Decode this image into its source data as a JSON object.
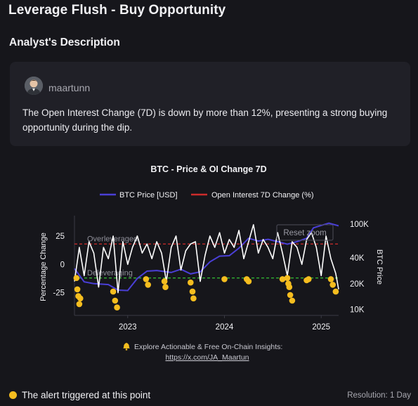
{
  "page": {
    "title": "Leverage Flush - Buy Opportunity",
    "section_heading": "Analyst's Description"
  },
  "description": {
    "author": "maartunn",
    "text": "The Open Interest Change (7D) is down by more than 12%, presenting a strong buying opportunity during the dip."
  },
  "footer": {
    "alert_text": "The alert triggered at this point",
    "resolution": "Resolution: 1 Day"
  },
  "colors": {
    "background": "#16161b",
    "card": "#202027",
    "btc_price": "#4a3fd6",
    "open_interest": "#cc2b2b",
    "oi_line": "#ffffff",
    "alert": "#f5bd1f",
    "overleveraged": "#cc2b2b",
    "deleveraging": "#35c235"
  },
  "chart_data": {
    "type": "line",
    "title": "BTC - Price & OI Change 7D",
    "reset_zoom_label": "Reset zoom",
    "watermark_text": "Explore Actionable & Free On-Chain Insights:",
    "watermark_link": "https://x.com/JA_Maartun",
    "watermark_icon": "bell-icon",
    "legend_position": "top",
    "legend": [
      {
        "name": "BTC Price [USD]",
        "color": "#4a3fd6"
      },
      {
        "name": "Open Interest 7D Change (%)",
        "color": "#cc2b2b"
      }
    ],
    "x_ticks": [
      {
        "label": "2023",
        "t": 2023.0
      },
      {
        "label": "2024",
        "t": 2024.0
      },
      {
        "label": "2025",
        "t": 2025.0
      }
    ],
    "x_range": [
      2022.45,
      2025.18
    ],
    "left_axis": {
      "label": "Percentage Change",
      "ticks": [
        25,
        0,
        -25
      ],
      "range": [
        -45,
        43
      ]
    },
    "right_axis": {
      "label": "BTC Price",
      "scale": "log",
      "ticks": [
        {
          "label": "100K",
          "v": 100000
        },
        {
          "label": "40K",
          "v": 40000
        },
        {
          "label": "20K",
          "v": 20000
        },
        {
          "label": "10K",
          "v": 10000
        }
      ],
      "range": [
        8500,
        125000
      ]
    },
    "thresholds": [
      {
        "label": "Overleveraged",
        "value": 18,
        "color": "#cc2b2b"
      },
      {
        "label": "Deleveraging",
        "value": -12,
        "color": "#35c235"
      }
    ],
    "series": [
      {
        "name": "BTC Price [USD]",
        "axis": "right",
        "t": [
          2022.45,
          2022.55,
          2022.65,
          2022.8,
          2022.9,
          2023.0,
          2023.1,
          2023.2,
          2023.3,
          2023.45,
          2023.55,
          2023.65,
          2023.75,
          2023.85,
          2023.95,
          2024.05,
          2024.15,
          2024.25,
          2024.35,
          2024.45,
          2024.55,
          2024.65,
          2024.75,
          2024.85,
          2024.92,
          2025.0,
          2025.08,
          2025.18
        ],
        "values": [
          30000,
          21000,
          20000,
          19500,
          16800,
          16600,
          23000,
          28000,
          28500,
          27000,
          29500,
          26000,
          27500,
          36000,
          42000,
          42500,
          52000,
          68000,
          63000,
          66000,
          62000,
          58000,
          62000,
          68000,
          90000,
          96000,
          102000,
          95000
        ]
      },
      {
        "name": "Open Interest 7D Change (%)",
        "axis": "left",
        "t": [
          2022.45,
          2022.5,
          2022.55,
          2022.6,
          2022.65,
          2022.7,
          2022.75,
          2022.8,
          2022.85,
          2022.9,
          2022.95,
          2023.0,
          2023.05,
          2023.1,
          2023.15,
          2023.2,
          2023.25,
          2023.3,
          2023.35,
          2023.4,
          2023.45,
          2023.5,
          2023.55,
          2023.6,
          2023.65,
          2023.7,
          2023.75,
          2023.8,
          2023.85,
          2023.9,
          2023.95,
          2024.0,
          2024.05,
          2024.1,
          2024.15,
          2024.2,
          2024.25,
          2024.3,
          2024.35,
          2024.4,
          2024.45,
          2024.5,
          2024.55,
          2024.6,
          2024.65,
          2024.7,
          2024.75,
          2024.8,
          2024.85,
          2024.9,
          2024.95,
          2025.0,
          2025.05,
          2025.1,
          2025.15,
          2025.18
        ],
        "values": [
          -15,
          15,
          -10,
          20,
          10,
          -20,
          15,
          5,
          25,
          -25,
          20,
          0,
          15,
          25,
          10,
          18,
          5,
          20,
          10,
          -15,
          15,
          25,
          -5,
          12,
          18,
          20,
          -15,
          8,
          25,
          15,
          28,
          10,
          22,
          15,
          30,
          5,
          20,
          35,
          10,
          22,
          15,
          5,
          28,
          10,
          -10,
          20,
          15,
          0,
          22,
          28,
          15,
          -10,
          25,
          5,
          -8,
          -22
        ]
      }
    ],
    "alerts": [
      {
        "t": 2022.47,
        "v": -12
      },
      {
        "t": 2022.48,
        "v": -22
      },
      {
        "t": 2022.49,
        "v": -28
      },
      {
        "t": 2022.5,
        "v": -35
      },
      {
        "t": 2022.51,
        "v": -30
      },
      {
        "t": 2022.85,
        "v": -24
      },
      {
        "t": 2022.87,
        "v": -32
      },
      {
        "t": 2022.89,
        "v": -38
      },
      {
        "t": 2023.19,
        "v": -13
      },
      {
        "t": 2023.21,
        "v": -18
      },
      {
        "t": 2023.38,
        "v": -15
      },
      {
        "t": 2023.39,
        "v": -20
      },
      {
        "t": 2023.65,
        "v": -16
      },
      {
        "t": 2023.67,
        "v": -24
      },
      {
        "t": 2023.68,
        "v": -30
      },
      {
        "t": 2024.0,
        "v": -13
      },
      {
        "t": 2024.23,
        "v": -13
      },
      {
        "t": 2024.25,
        "v": -15
      },
      {
        "t": 2024.6,
        "v": -13
      },
      {
        "t": 2024.65,
        "v": -12
      },
      {
        "t": 2024.66,
        "v": -17
      },
      {
        "t": 2024.67,
        "v": -20
      },
      {
        "t": 2024.68,
        "v": -27
      },
      {
        "t": 2024.7,
        "v": -32
      },
      {
        "t": 2024.85,
        "v": -14
      },
      {
        "t": 2024.87,
        "v": -13
      },
      {
        "t": 2025.1,
        "v": -13
      },
      {
        "t": 2025.12,
        "v": -18
      },
      {
        "t": 2025.15,
        "v": -24
      }
    ]
  }
}
